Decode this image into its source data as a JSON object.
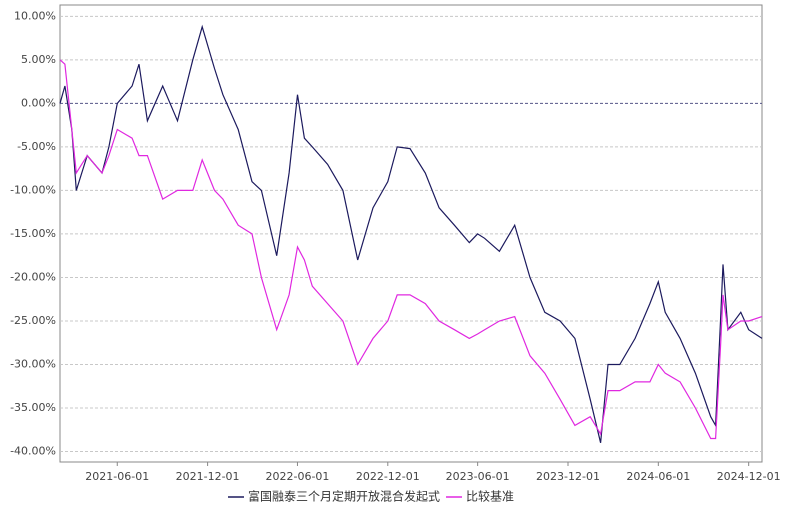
{
  "chart_data": {
    "type": "line",
    "x": [
      "2021-02-05",
      "2021-02-15",
      "2021-03-01",
      "2021-03-10",
      "2021-04-01",
      "2021-05-01",
      "2021-05-15",
      "2021-06-01",
      "2021-07-01",
      "2021-07-15",
      "2021-08-01",
      "2021-09-01",
      "2021-10-01",
      "2021-11-01",
      "2021-11-20",
      "2021-12-15",
      "2022-01-01",
      "2022-02-01",
      "2022-03-01",
      "2022-03-20",
      "2022-04-20",
      "2022-05-15",
      "2022-06-01",
      "2022-06-15",
      "2022-07-01",
      "2022-08-01",
      "2022-09-01",
      "2022-10-01",
      "2022-11-01",
      "2022-12-01",
      "2022-12-20",
      "2023-01-15",
      "2023-02-15",
      "2023-03-15",
      "2023-04-15",
      "2023-05-15",
      "2023-06-01",
      "2023-06-15",
      "2023-07-15",
      "2023-08-15",
      "2023-09-15",
      "2023-10-15",
      "2023-11-15",
      "2023-12-15",
      "2024-01-15",
      "2024-02-05",
      "2024-02-20",
      "2024-03-15",
      "2024-04-15",
      "2024-05-15",
      "2024-06-01",
      "2024-06-15",
      "2024-07-15",
      "2024-08-15",
      "2024-09-15",
      "2024-09-25",
      "2024-10-05",
      "2024-10-10",
      "2024-10-20",
      "2024-11-15",
      "2024-12-01",
      "2024-12-28"
    ],
    "series": [
      {
        "name": "富国融泰三个月定期开放混合发起式",
        "color": "#1c1a5e",
        "values": [
          0,
          2,
          -3,
          -10,
          -6,
          -8,
          -5,
          0,
          2,
          4.5,
          -2,
          2,
          -2,
          5,
          8.8,
          4,
          1,
          -3,
          -9,
          -10,
          -17.5,
          -8,
          1,
          -4,
          -5,
          -7,
          -10,
          -18,
          -12,
          -9,
          -5,
          -5.2,
          -8,
          -12,
          -14,
          -16,
          -15,
          -15.5,
          -17,
          -14,
          -20,
          -24,
          -25,
          -27,
          -34,
          -39,
          -30,
          -30,
          -27,
          -23,
          -20.5,
          -24,
          -27,
          -31,
          -36,
          -37,
          -25,
          -18.5,
          -26,
          -24,
          -26,
          -27
        ]
      },
      {
        "name": "比较基准",
        "color": "#e028e0",
        "values": [
          5,
          4.5,
          -3,
          -8,
          -6,
          -8,
          -6,
          -3,
          -4,
          -6,
          -6,
          -11,
          -10,
          -10,
          -6.5,
          -10,
          -11,
          -14,
          -15,
          -20,
          -26,
          -22,
          -16.5,
          -18,
          -21,
          -23,
          -25,
          -30,
          -27,
          -25,
          -22,
          -22,
          -23,
          -25,
          -26,
          -27,
          -26.5,
          -26,
          -25,
          -24.5,
          -29,
          -31,
          -34,
          -37,
          -36,
          -38,
          -33,
          -33,
          -32,
          -32,
          -30,
          -31,
          -32,
          -35,
          -38.5,
          -38.5,
          -28,
          -22,
          -26,
          -25,
          -25,
          -24.5
        ]
      }
    ],
    "xlim": [
      "2021-02-05",
      "2024-12-28"
    ],
    "xticks": [
      "2021-06-01",
      "2021-12-01",
      "2022-06-01",
      "2022-12-01",
      "2023-06-01",
      "2023-12-01",
      "2024-06-01",
      "2024-12-01"
    ],
    "ylim": [
      -41.2,
      11.3
    ],
    "yticks": [
      {
        "value": 10,
        "label": "10.00%"
      },
      {
        "value": 5,
        "label": "5.00%"
      },
      {
        "value": 0,
        "label": "0.00%"
      },
      {
        "value": -5,
        "label": "-5.00%"
      },
      {
        "value": -10,
        "label": "-10.00%"
      },
      {
        "value": -15,
        "label": "-15.00%"
      },
      {
        "value": -20,
        "label": "-20.00%"
      },
      {
        "value": -25,
        "label": "-25.00%"
      },
      {
        "value": -30,
        "label": "-30.00%"
      },
      {
        "value": -35,
        "label": "-35.00%"
      },
      {
        "value": -40,
        "label": "-40.00%"
      }
    ],
    "grid": true
  }
}
